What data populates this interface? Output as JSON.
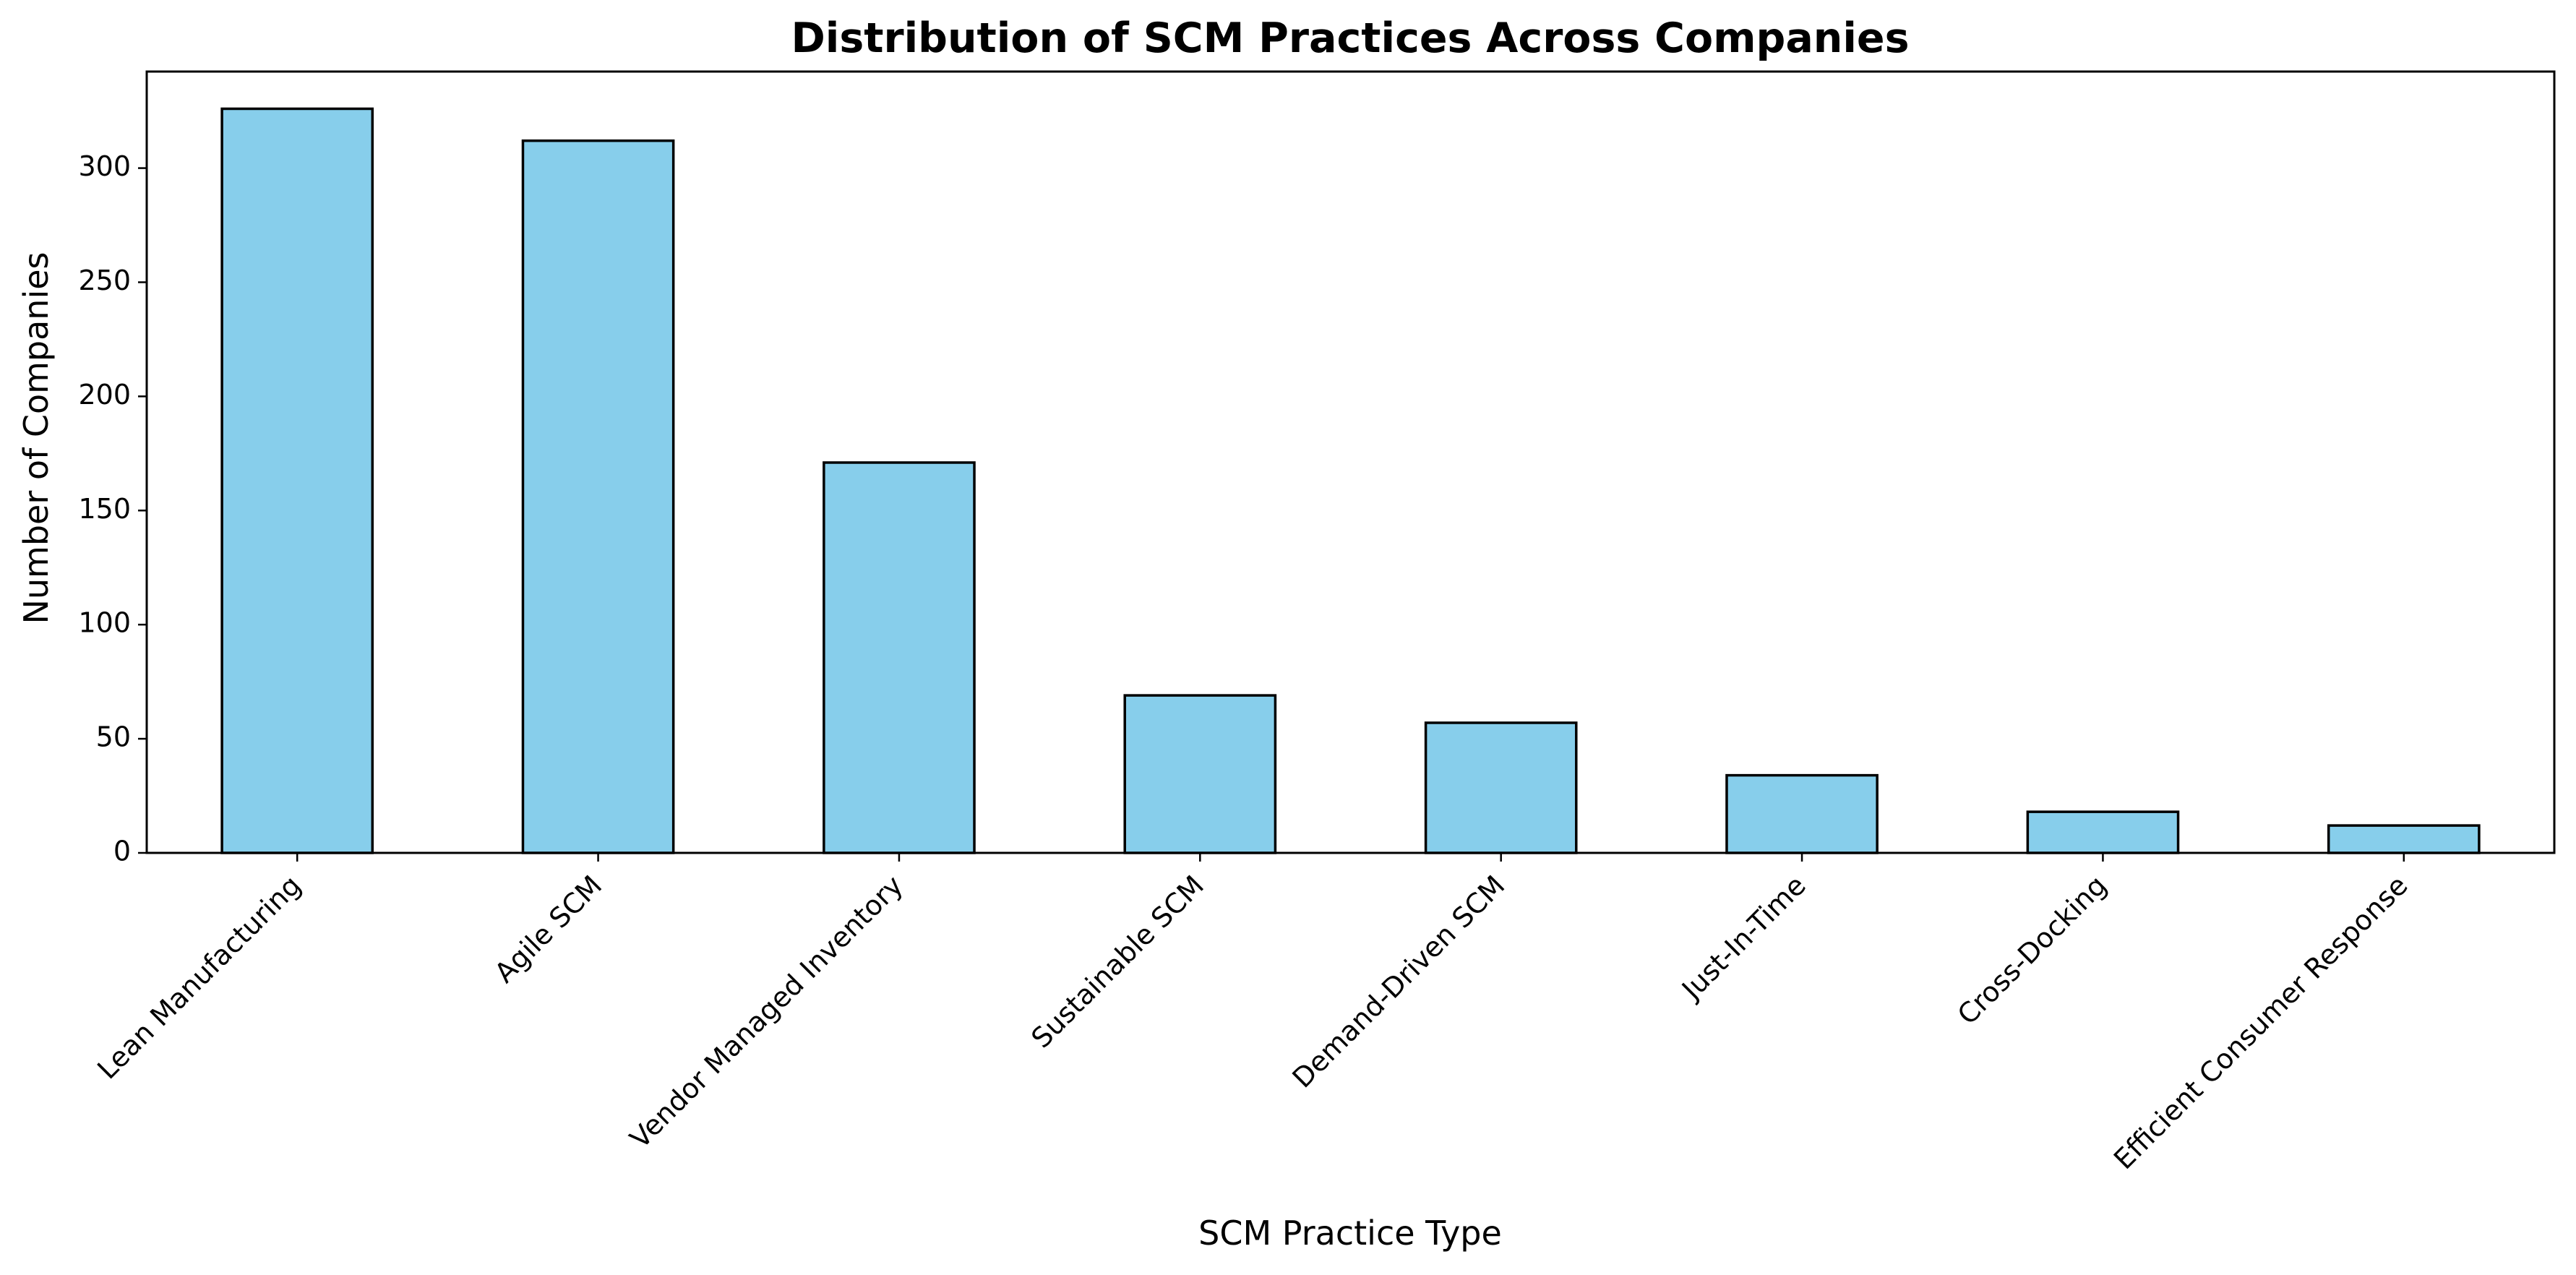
{
  "chart_data": {
    "type": "bar",
    "title": "Distribution of SCM Practices Across Companies",
    "xlabel": "SCM Practice Type",
    "ylabel": "Number of Companies",
    "categories": [
      "Lean Manufacturing",
      "Agile SCM",
      "Vendor Managed Inventory",
      "Sustainable SCM",
      "Demand-Driven SCM",
      "Just-In-Time",
      "Cross-Docking",
      "Efficient Consumer Response"
    ],
    "values": [
      326,
      312,
      171,
      69,
      57,
      34,
      18,
      12
    ],
    "yticks": [
      0,
      50,
      100,
      150,
      200,
      250,
      300
    ],
    "ylim": [
      0,
      342.3
    ],
    "grid": false,
    "legend": "none",
    "colors": {
      "bar_fill": "#87CEEB",
      "bar_edge": "#000000",
      "axes": "#000000",
      "background": "#ffffff"
    }
  }
}
